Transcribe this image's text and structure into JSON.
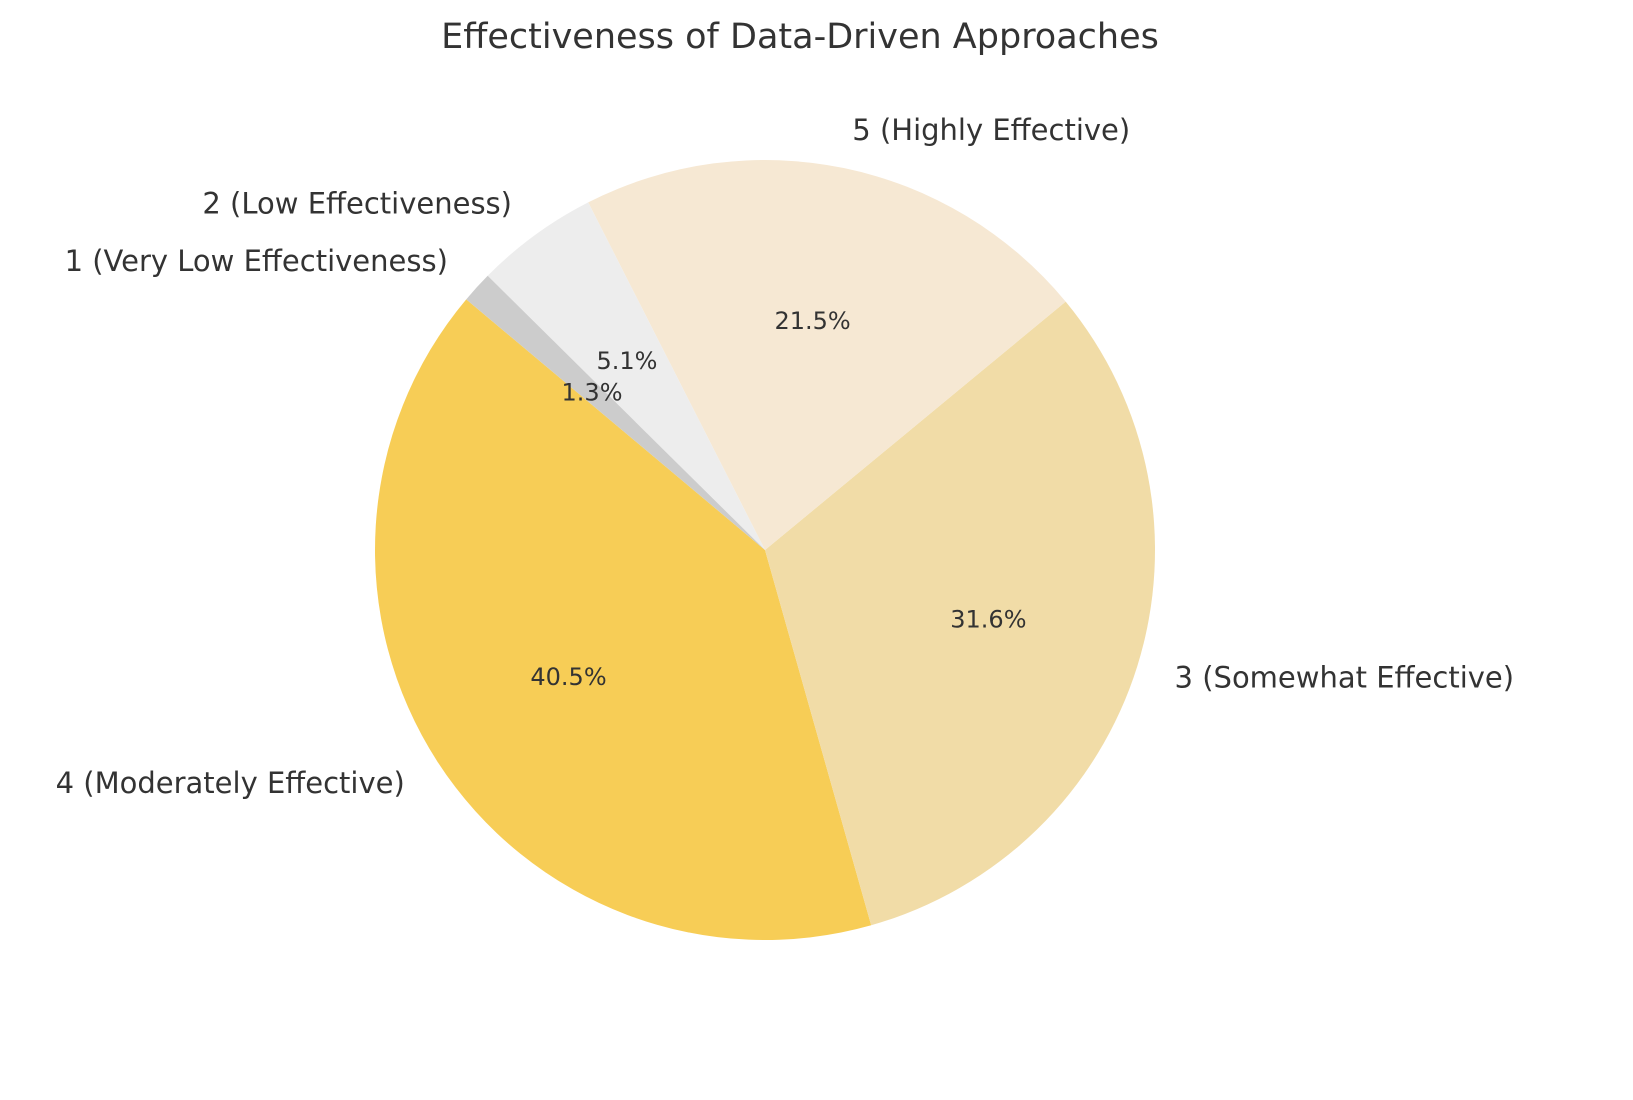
{
  "chart_data": {
    "type": "pie",
    "title": "Effectiveness of Data-Driven Approaches",
    "start_angle_deg": 140,
    "direction": "counterclockwise",
    "slices": [
      {
        "label": "4 (Moderately Effective)",
        "value": 40.5,
        "pct_label": "40.5%",
        "color": "#F7CD56"
      },
      {
        "label": "3 (Somewhat Effective)",
        "value": 31.6,
        "pct_label": "31.6%",
        "color": "#F1DCA7"
      },
      {
        "label": "5 (Highly Effective)",
        "value": 21.5,
        "pct_label": "21.5%",
        "color": "#F6E8D3"
      },
      {
        "label": "2 (Low Effectiveness)",
        "value": 5.1,
        "pct_label": "5.1%",
        "color": "#EDEDED"
      },
      {
        "label": "1 (Very Low Effectiveness)",
        "value": 1.3,
        "pct_label": "1.3%",
        "color": "#CCCCCC"
      }
    ]
  }
}
